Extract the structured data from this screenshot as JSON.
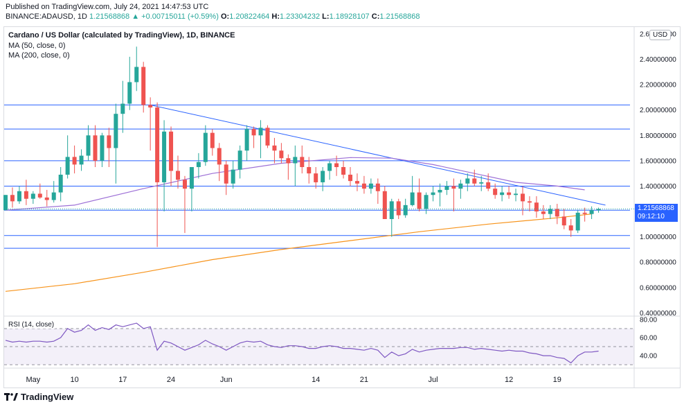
{
  "header": {
    "published": "Published on TradingView.com, July 24, 2021 14:47:53 UTC",
    "symbol": "BINANCE:ADAUSD, 1D",
    "change": "1.21568868 ▲ +0.00715011 (+0.59%)",
    "open_label": "O:",
    "open": "1.20822464",
    "high_label": "H:",
    "high": "1.23304232",
    "low_label": "L:",
    "low": "1.18928107",
    "close_label": "C:",
    "close": "1.21568868"
  },
  "legend": {
    "title": "Cardano / US Dollar (calculated by TradingView), 1D, BINANCE",
    "ma50": "MA (50, close, 0)",
    "ma200": "MA (200, close, 0)",
    "rsi": "RSI (14, close)"
  },
  "currency_badge": "USD",
  "price_tag": {
    "price": "1.21568868",
    "countdown": "09:12:10"
  },
  "brand": "TradingView",
  "colors": {
    "up": "#26a69a",
    "down": "#ef5350",
    "ma50": "#9c6fd6",
    "ma200": "#f7931a",
    "rsi": "#7e57c2",
    "trendline": "#2962ff",
    "price_tag": "#2962ff"
  },
  "chart_data": {
    "type": "candlestick",
    "price_axis": {
      "ticks": [
        "2.60000000",
        "2.40000000",
        "2.20000000",
        "2.00000000",
        "1.80000000",
        "1.60000000",
        "1.40000000",
        "1.20000000",
        "1.00000000",
        "0.80000000",
        "0.60000000",
        "0.40000000"
      ],
      "range": [
        0.38,
        2.66
      ]
    },
    "time_axis": {
      "ticks": [
        {
          "label": "May",
          "day": 4
        },
        {
          "label": "10",
          "day": 10
        },
        {
          "label": "17",
          "day": 17
        },
        {
          "label": "24",
          "day": 24
        },
        {
          "label": "Jun",
          "day": 32
        },
        {
          "label": "14",
          "day": 45
        },
        {
          "label": "21",
          "day": 52
        },
        {
          "label": "Jul",
          "day": 62
        },
        {
          "label": "12",
          "day": 73
        },
        {
          "label": "19",
          "day": 80
        }
      ]
    },
    "candles": [
      [
        1.21,
        1.33,
        1.22,
        1.33
      ],
      [
        1.33,
        1.39,
        1.23,
        1.28
      ],
      [
        1.28,
        1.4,
        1.26,
        1.36
      ],
      [
        1.36,
        1.45,
        1.25,
        1.3
      ],
      [
        1.3,
        1.36,
        1.26,
        1.34
      ],
      [
        1.34,
        1.42,
        1.3,
        1.31
      ],
      [
        1.31,
        1.37,
        1.24,
        1.29
      ],
      [
        1.29,
        1.44,
        1.27,
        1.35
      ],
      [
        1.35,
        1.55,
        1.28,
        1.49
      ],
      [
        1.49,
        1.8,
        1.46,
        1.63
      ],
      [
        1.63,
        1.72,
        1.5,
        1.57
      ],
      [
        1.57,
        1.69,
        1.52,
        1.64
      ],
      [
        1.64,
        1.88,
        1.6,
        1.8
      ],
      [
        1.8,
        1.88,
        1.55,
        1.6
      ],
      [
        1.6,
        1.82,
        1.55,
        1.8
      ],
      [
        1.8,
        1.86,
        1.55,
        1.7
      ],
      [
        1.7,
        2.05,
        1.42,
        1.97
      ],
      [
        1.97,
        2.23,
        1.82,
        2.05
      ],
      [
        2.05,
        2.42,
        2.0,
        2.22
      ],
      [
        2.22,
        2.5,
        2.15,
        2.34
      ],
      [
        2.34,
        2.38,
        1.98,
        2.04
      ],
      [
        2.04,
        2.1,
        1.68,
        2.02
      ],
      [
        2.02,
        2.06,
        0.92,
        1.43
      ],
      [
        1.43,
        1.92,
        1.2,
        1.83
      ],
      [
        1.83,
        1.87,
        1.4,
        1.52
      ],
      [
        1.52,
        1.64,
        1.38,
        1.45
      ],
      [
        1.45,
        1.48,
        1.03,
        1.38
      ],
      [
        1.38,
        1.55,
        1.2,
        1.55
      ],
      [
        1.55,
        1.66,
        1.46,
        1.59
      ],
      [
        1.59,
        1.88,
        1.56,
        1.82
      ],
      [
        1.82,
        1.85,
        1.64,
        1.7
      ],
      [
        1.7,
        1.74,
        1.44,
        1.57
      ],
      [
        1.57,
        1.6,
        1.33,
        1.42
      ],
      [
        1.42,
        1.6,
        1.38,
        1.53
      ],
      [
        1.53,
        1.72,
        1.46,
        1.68
      ],
      [
        1.68,
        1.88,
        1.6,
        1.85
      ],
      [
        1.85,
        1.87,
        1.7,
        1.8
      ],
      [
        1.8,
        1.92,
        1.62,
        1.86
      ],
      [
        1.86,
        1.88,
        1.7,
        1.72
      ],
      [
        1.72,
        1.78,
        1.58,
        1.68
      ],
      [
        1.68,
        1.74,
        1.58,
        1.62
      ],
      [
        1.62,
        1.65,
        1.45,
        1.58
      ],
      [
        1.58,
        1.72,
        1.4,
        1.63
      ],
      [
        1.63,
        1.72,
        1.5,
        1.55
      ],
      [
        1.55,
        1.63,
        1.42,
        1.5
      ],
      [
        1.5,
        1.55,
        1.38,
        1.43
      ],
      [
        1.43,
        1.55,
        1.36,
        1.52
      ],
      [
        1.52,
        1.6,
        1.45,
        1.58
      ],
      [
        1.58,
        1.64,
        1.48,
        1.55
      ],
      [
        1.55,
        1.6,
        1.46,
        1.49
      ],
      [
        1.49,
        1.55,
        1.4,
        1.44
      ],
      [
        1.44,
        1.5,
        1.36,
        1.42
      ],
      [
        1.42,
        1.48,
        1.34,
        1.38
      ],
      [
        1.38,
        1.46,
        1.34,
        1.42
      ],
      [
        1.42,
        1.46,
        1.26,
        1.36
      ],
      [
        1.36,
        1.4,
        1.14,
        1.14
      ],
      [
        1.14,
        1.3,
        1.0,
        1.28
      ],
      [
        1.28,
        1.3,
        1.14,
        1.17
      ],
      [
        1.17,
        1.3,
        1.15,
        1.25
      ],
      [
        1.25,
        1.48,
        1.24,
        1.35
      ],
      [
        1.35,
        1.46,
        1.2,
        1.22
      ],
      [
        1.22,
        1.35,
        1.18,
        1.33
      ],
      [
        1.33,
        1.4,
        1.28,
        1.35
      ],
      [
        1.35,
        1.42,
        1.24,
        1.37
      ],
      [
        1.37,
        1.44,
        1.33,
        1.4
      ],
      [
        1.4,
        1.46,
        1.2,
        1.38
      ],
      [
        1.38,
        1.45,
        1.3,
        1.42
      ],
      [
        1.42,
        1.5,
        1.36,
        1.46
      ],
      [
        1.46,
        1.53,
        1.4,
        1.42
      ],
      [
        1.42,
        1.48,
        1.36,
        1.43
      ],
      [
        1.43,
        1.5,
        1.36,
        1.38
      ],
      [
        1.38,
        1.42,
        1.3,
        1.33
      ],
      [
        1.33,
        1.4,
        1.28,
        1.35
      ],
      [
        1.35,
        1.4,
        1.3,
        1.33
      ],
      [
        1.33,
        1.38,
        1.28,
        1.34
      ],
      [
        1.34,
        1.4,
        1.17,
        1.28
      ],
      [
        1.28,
        1.32,
        1.2,
        1.27
      ],
      [
        1.27,
        1.32,
        1.15,
        1.2
      ],
      [
        1.2,
        1.25,
        1.14,
        1.18
      ],
      [
        1.18,
        1.25,
        1.14,
        1.22
      ],
      [
        1.22,
        1.26,
        1.1,
        1.16
      ],
      [
        1.16,
        1.22,
        1.06,
        1.09
      ],
      [
        1.09,
        1.14,
        1.0,
        1.05
      ],
      [
        1.05,
        1.21,
        1.03,
        1.19
      ],
      [
        1.19,
        1.23,
        1.12,
        1.18
      ],
      [
        1.18,
        1.24,
        1.14,
        1.21
      ],
      [
        1.21,
        1.23,
        1.19,
        1.22
      ]
    ],
    "ma50": [
      [
        0,
        1.21
      ],
      [
        10,
        1.25
      ],
      [
        20,
        1.38
      ],
      [
        30,
        1.5
      ],
      [
        40,
        1.58
      ],
      [
        50,
        1.625
      ],
      [
        56,
        1.62
      ],
      [
        62,
        1.57
      ],
      [
        68,
        1.5
      ],
      [
        74,
        1.43
      ],
      [
        80,
        1.4
      ],
      [
        84,
        1.37
      ]
    ],
    "ma200": [
      [
        0,
        0.57
      ],
      [
        10,
        0.63
      ],
      [
        20,
        0.72
      ],
      [
        30,
        0.82
      ],
      [
        40,
        0.9
      ],
      [
        50,
        0.97
      ],
      [
        60,
        1.04
      ],
      [
        70,
        1.1
      ],
      [
        80,
        1.15
      ],
      [
        85,
        1.18
      ]
    ],
    "horizontal_levels": [
      2.04,
      1.85,
      1.6,
      1.4,
      1.21,
      1.01,
      0.91
    ],
    "trendline": [
      [
        21,
        2.04
      ],
      [
        87,
        1.25
      ]
    ],
    "rsi": {
      "ticks": [
        "80.00",
        "60.00",
        "40.00"
      ],
      "range": [
        27,
        83
      ],
      "bands": [
        70,
        50,
        30
      ],
      "values": [
        57,
        55,
        56,
        55,
        56,
        56,
        55,
        56,
        60,
        70,
        66,
        68,
        74,
        68,
        71,
        69,
        74,
        72,
        74,
        76,
        70,
        72,
        46,
        56,
        54,
        50,
        46,
        49,
        52,
        57,
        53,
        50,
        46,
        50,
        54,
        56,
        55,
        56,
        52,
        50,
        49,
        51,
        51,
        50,
        48,
        48,
        50,
        51,
        50,
        48,
        48,
        47,
        46,
        48,
        46,
        38,
        44,
        40,
        42,
        47,
        44,
        46,
        47,
        48,
        48,
        48,
        49,
        49,
        47,
        48,
        47,
        46,
        45,
        46,
        45,
        45,
        43,
        42,
        40,
        40,
        38,
        37,
        32,
        40,
        44,
        44,
        45
      ]
    }
  }
}
